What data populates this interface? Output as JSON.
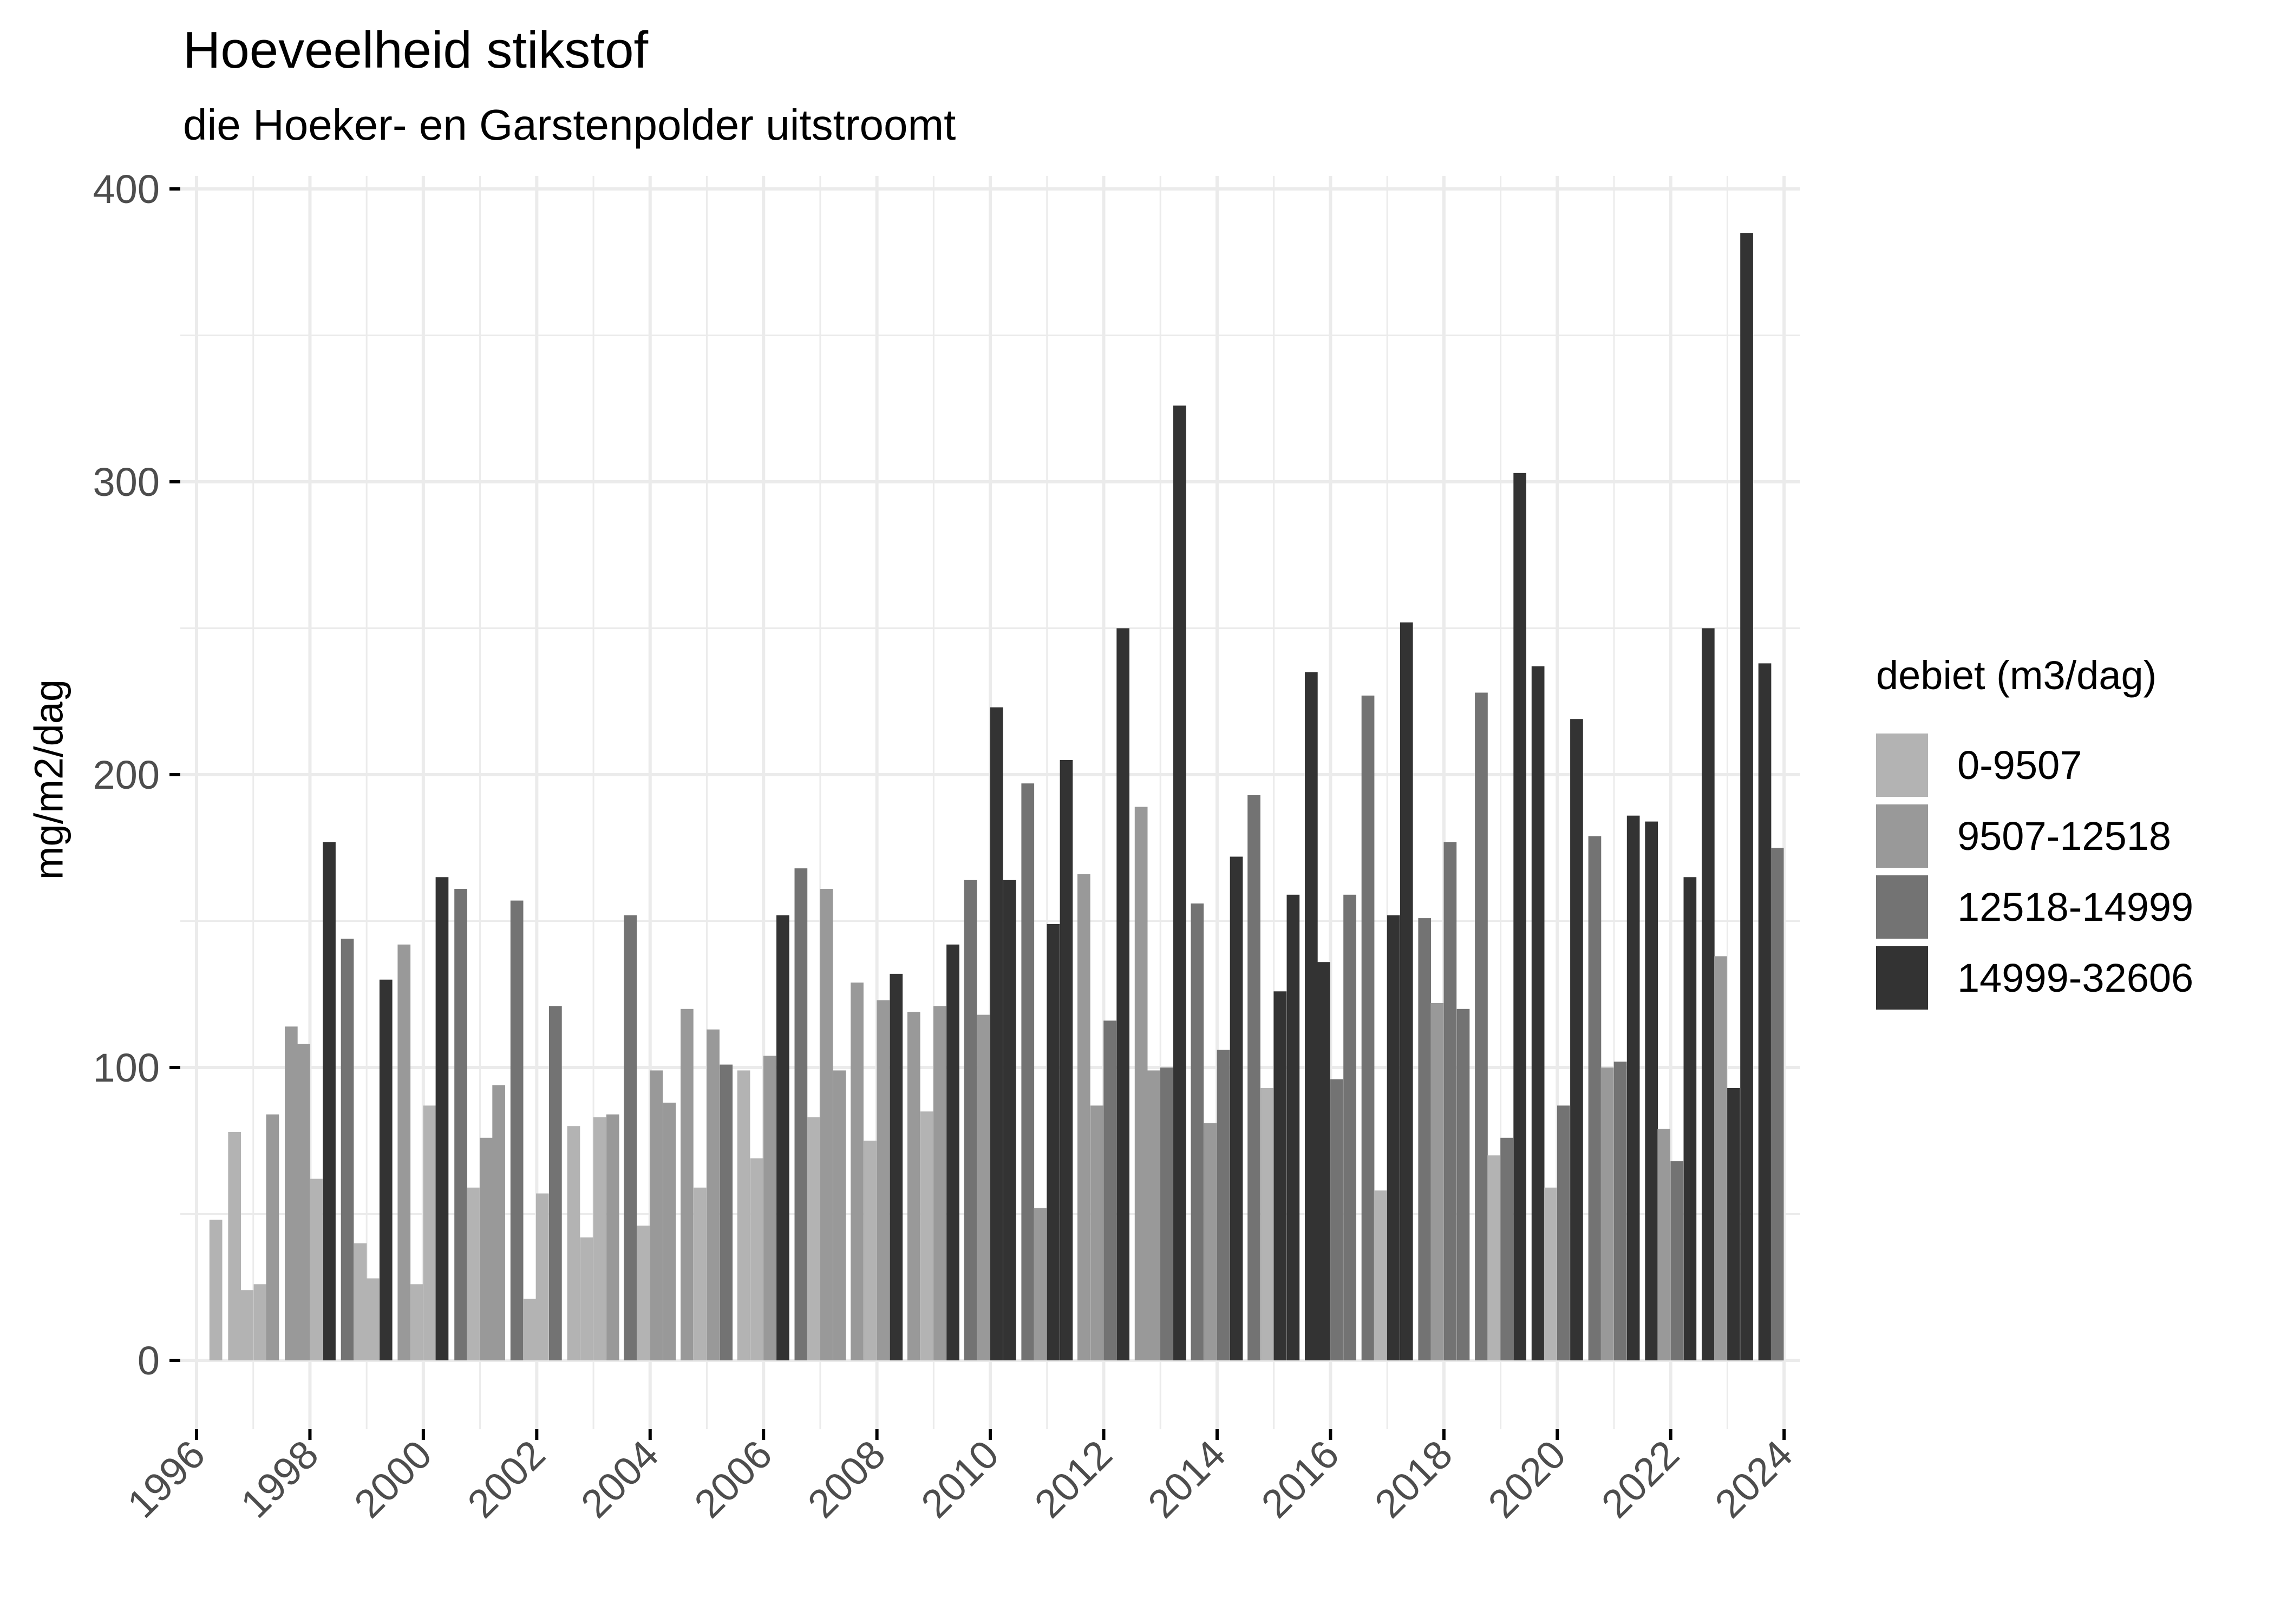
{
  "title": "Hoeveelheid stikstof",
  "subtitle": "die Hoeker- en Garstenpolder uitstroomt",
  "legend": {
    "title": "debiet (m3/dag)",
    "items": [
      {
        "label": "0-9507",
        "color": "#B3B3B3"
      },
      {
        "label": "9507-12518",
        "color": "#999999"
      },
      {
        "label": "12518-14999",
        "color": "#737373"
      },
      {
        "label": "14999-32606",
        "color": "#333333"
      }
    ]
  },
  "colors": {
    "panel_background": "#FFFFFF",
    "grid_major": "#EBEBEB",
    "grid_minor": "#F2F2F2",
    "tick_text": "#4D4D4D"
  },
  "chart_data": {
    "type": "bar",
    "title": "Hoeveelheid stikstof",
    "subtitle": "die Hoeker- en Garstenpolder uitstroomt",
    "xlabel": "",
    "ylabel": "mg/m2/dag",
    "ylim": [
      0,
      400
    ],
    "xlim": [
      1995.7,
      2024.3
    ],
    "yticks": [
      0,
      100,
      200,
      300,
      400
    ],
    "xticks": [
      "1996",
      "1998",
      "2000",
      "2002",
      "2004",
      "2006",
      "2008",
      "2010",
      "2012",
      "2014",
      "2016",
      "2018",
      "2020",
      "2022",
      "2024"
    ],
    "x_tick_rotation": 45,
    "grid": true,
    "legend_position": "right",
    "bar_width_years": 0.226,
    "fill_by": "debiet (m3/dag)",
    "series_classes": [
      "0-9507",
      "9507-12518",
      "12518-14999",
      "14999-32606"
    ],
    "bars": [
      {
        "x": 1996.34,
        "value": 48,
        "class": 0
      },
      {
        "x": 1996.67,
        "value": 78,
        "class": 0
      },
      {
        "x": 1996.89,
        "value": 24,
        "class": 0
      },
      {
        "x": 1997.12,
        "value": 26,
        "class": 0
      },
      {
        "x": 1997.34,
        "value": 84,
        "class": 1
      },
      {
        "x": 1997.67,
        "value": 114,
        "class": 1
      },
      {
        "x": 1997.89,
        "value": 108,
        "class": 1
      },
      {
        "x": 1998.11,
        "value": 62,
        "class": 0
      },
      {
        "x": 1998.34,
        "value": 177,
        "class": 3
      },
      {
        "x": 1998.66,
        "value": 144,
        "class": 2
      },
      {
        "x": 1998.89,
        "value": 40,
        "class": 0
      },
      {
        "x": 1999.11,
        "value": 28,
        "class": 0
      },
      {
        "x": 1999.34,
        "value": 130,
        "class": 3
      },
      {
        "x": 1999.66,
        "value": 142,
        "class": 1
      },
      {
        "x": 1999.88,
        "value": 26,
        "class": 0
      },
      {
        "x": 2000.11,
        "value": 87,
        "class": 0
      },
      {
        "x": 2000.33,
        "value": 165,
        "class": 3
      },
      {
        "x": 2000.66,
        "value": 161,
        "class": 2
      },
      {
        "x": 2000.88,
        "value": 59,
        "class": 0
      },
      {
        "x": 2001.11,
        "value": 76,
        "class": 1
      },
      {
        "x": 2001.33,
        "value": 94,
        "class": 1
      },
      {
        "x": 2001.65,
        "value": 157,
        "class": 2
      },
      {
        "x": 2001.88,
        "value": 21,
        "class": 0
      },
      {
        "x": 2002.1,
        "value": 57,
        "class": 0
      },
      {
        "x": 2002.33,
        "value": 121,
        "class": 2
      },
      {
        "x": 2002.65,
        "value": 80,
        "class": 0
      },
      {
        "x": 2002.88,
        "value": 42,
        "class": 0
      },
      {
        "x": 2003.11,
        "value": 83,
        "class": 0
      },
      {
        "x": 2003.34,
        "value": 84,
        "class": 1
      },
      {
        "x": 2003.65,
        "value": 152,
        "class": 2
      },
      {
        "x": 2003.88,
        "value": 46,
        "class": 0
      },
      {
        "x": 2004.11,
        "value": 99,
        "class": 1
      },
      {
        "x": 2004.34,
        "value": 88,
        "class": 1
      },
      {
        "x": 2004.65,
        "value": 120,
        "class": 1
      },
      {
        "x": 2004.88,
        "value": 59,
        "class": 0
      },
      {
        "x": 2005.11,
        "value": 113,
        "class": 1
      },
      {
        "x": 2005.34,
        "value": 101,
        "class": 2
      },
      {
        "x": 2005.65,
        "value": 99,
        "class": 0
      },
      {
        "x": 2005.88,
        "value": 69,
        "class": 0
      },
      {
        "x": 2006.11,
        "value": 104,
        "class": 1
      },
      {
        "x": 2006.34,
        "value": 152,
        "class": 3
      },
      {
        "x": 2006.66,
        "value": 168,
        "class": 2
      },
      {
        "x": 2006.88,
        "value": 83,
        "class": 0
      },
      {
        "x": 2007.11,
        "value": 161,
        "class": 1
      },
      {
        "x": 2007.34,
        "value": 99,
        "class": 1
      },
      {
        "x": 2007.65,
        "value": 129,
        "class": 1
      },
      {
        "x": 2007.88,
        "value": 75,
        "class": 0
      },
      {
        "x": 2008.11,
        "value": 123,
        "class": 1
      },
      {
        "x": 2008.34,
        "value": 132,
        "class": 3
      },
      {
        "x": 2008.65,
        "value": 119,
        "class": 1
      },
      {
        "x": 2008.88,
        "value": 85,
        "class": 0
      },
      {
        "x": 2009.11,
        "value": 121,
        "class": 1
      },
      {
        "x": 2009.34,
        "value": 142,
        "class": 3
      },
      {
        "x": 2009.65,
        "value": 164,
        "class": 2
      },
      {
        "x": 2009.88,
        "value": 118,
        "class": 1
      },
      {
        "x": 2010.11,
        "value": 223,
        "class": 3
      },
      {
        "x": 2010.34,
        "value": 164,
        "class": 3
      },
      {
        "x": 2010.66,
        "value": 197,
        "class": 2
      },
      {
        "x": 2010.88,
        "value": 52,
        "class": 1
      },
      {
        "x": 2011.11,
        "value": 149,
        "class": 3
      },
      {
        "x": 2011.34,
        "value": 205,
        "class": 3
      },
      {
        "x": 2011.65,
        "value": 166,
        "class": 1
      },
      {
        "x": 2011.88,
        "value": 87,
        "class": 1
      },
      {
        "x": 2012.11,
        "value": 116,
        "class": 2
      },
      {
        "x": 2012.34,
        "value": 250,
        "class": 3
      },
      {
        "x": 2012.66,
        "value": 189,
        "class": 1
      },
      {
        "x": 2012.88,
        "value": 99,
        "class": 1
      },
      {
        "x": 2013.11,
        "value": 100,
        "class": 2
      },
      {
        "x": 2013.34,
        "value": 326,
        "class": 3
      },
      {
        "x": 2013.65,
        "value": 156,
        "class": 2
      },
      {
        "x": 2013.88,
        "value": 81,
        "class": 1
      },
      {
        "x": 2014.11,
        "value": 106,
        "class": 2
      },
      {
        "x": 2014.34,
        "value": 172,
        "class": 3
      },
      {
        "x": 2014.65,
        "value": 193,
        "class": 2
      },
      {
        "x": 2014.88,
        "value": 93,
        "class": 0
      },
      {
        "x": 2015.11,
        "value": 126,
        "class": 3
      },
      {
        "x": 2015.34,
        "value": 159,
        "class": 3
      },
      {
        "x": 2015.66,
        "value": 235,
        "class": 3
      },
      {
        "x": 2015.88,
        "value": 136,
        "class": 3
      },
      {
        "x": 2016.11,
        "value": 96,
        "class": 2
      },
      {
        "x": 2016.34,
        "value": 159,
        "class": 2
      },
      {
        "x": 2016.66,
        "value": 227,
        "class": 2
      },
      {
        "x": 2016.88,
        "value": 58,
        "class": 0
      },
      {
        "x": 2017.11,
        "value": 152,
        "class": 3
      },
      {
        "x": 2017.34,
        "value": 252,
        "class": 3
      },
      {
        "x": 2017.66,
        "value": 151,
        "class": 2
      },
      {
        "x": 2017.88,
        "value": 122,
        "class": 1
      },
      {
        "x": 2018.11,
        "value": 177,
        "class": 2
      },
      {
        "x": 2018.34,
        "value": 120,
        "class": 2
      },
      {
        "x": 2018.66,
        "value": 228,
        "class": 2
      },
      {
        "x": 2018.88,
        "value": 70,
        "class": 0
      },
      {
        "x": 2019.11,
        "value": 76,
        "class": 2
      },
      {
        "x": 2019.34,
        "value": 303,
        "class": 3
      },
      {
        "x": 2019.66,
        "value": 237,
        "class": 3
      },
      {
        "x": 2019.88,
        "value": 59,
        "class": 0
      },
      {
        "x": 2020.11,
        "value": 87,
        "class": 2
      },
      {
        "x": 2020.34,
        "value": 219,
        "class": 3
      },
      {
        "x": 2020.66,
        "value": 179,
        "class": 2
      },
      {
        "x": 2020.88,
        "value": 100,
        "class": 1
      },
      {
        "x": 2021.11,
        "value": 102,
        "class": 2
      },
      {
        "x": 2021.34,
        "value": 186,
        "class": 3
      },
      {
        "x": 2021.66,
        "value": 184,
        "class": 3
      },
      {
        "x": 2021.88,
        "value": 79,
        "class": 1
      },
      {
        "x": 2022.11,
        "value": 68,
        "class": 2
      },
      {
        "x": 2022.34,
        "value": 165,
        "class": 3
      },
      {
        "x": 2022.66,
        "value": 250,
        "class": 3
      },
      {
        "x": 2022.88,
        "value": 138,
        "class": 1
      },
      {
        "x": 2023.11,
        "value": 93,
        "class": 3
      },
      {
        "x": 2023.34,
        "value": 385,
        "class": 3
      },
      {
        "x": 2023.66,
        "value": 238,
        "class": 3
      },
      {
        "x": 2023.88,
        "value": 175,
        "class": 2
      }
    ]
  }
}
